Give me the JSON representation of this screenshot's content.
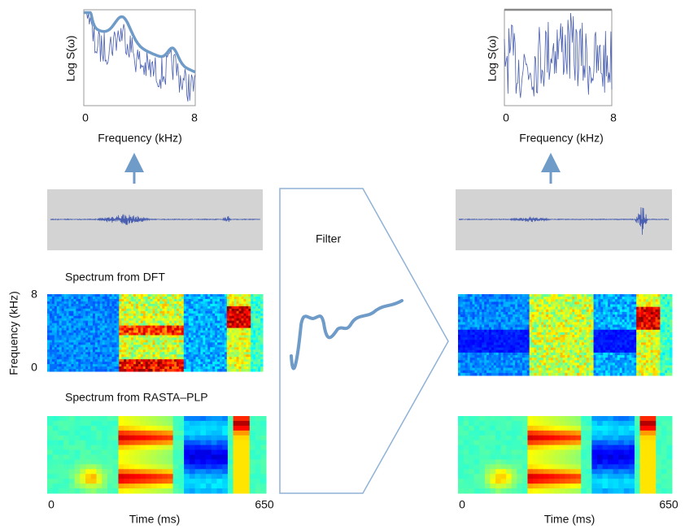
{
  "left_panel": {
    "spectrum_plot": {
      "y_label": "Log S(ω)",
      "x_label": "Frequency (kHz)",
      "x_ticks": [
        0,
        8
      ]
    },
    "dft_label": "Spectrum from DFT",
    "dft_y_label": "Frequency (kHz)",
    "dft_y_ticks": [
      8,
      0
    ],
    "rasta_label": "Spectrum from RASTA–PLP",
    "time_label": "Time (ms)",
    "time_ticks": [
      0,
      650
    ]
  },
  "filter": {
    "label": "Filter"
  },
  "right_panel": {
    "spectrum_plot": {
      "y_label": "Log S(ω)",
      "x_label": "Frequency (kHz)",
      "x_ticks": [
        0,
        8
      ]
    },
    "time_label": "Time (ms)",
    "time_ticks": [
      0,
      650
    ]
  }
}
